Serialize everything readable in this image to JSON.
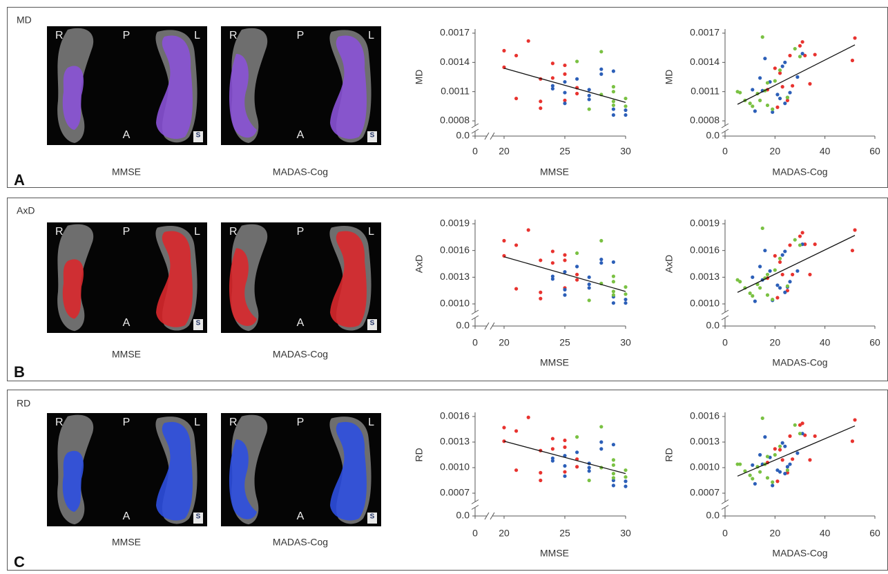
{
  "panels": [
    {
      "label": "A",
      "measure": "MD",
      "overlay_color": "#8a52d6",
      "images": [
        {
          "caption": "MMSE",
          "markers": [
            "R",
            "P",
            "L",
            "A",
            "S"
          ]
        },
        {
          "caption": "MADAS-Cog",
          "markers": [
            "R",
            "P",
            "L",
            "A",
            "S"
          ]
        }
      ]
    },
    {
      "label": "B",
      "measure": "AxD",
      "overlay_color": "#d9282c",
      "images": [
        {
          "caption": "MMSE",
          "markers": [
            "R",
            "P",
            "L",
            "A",
            "S"
          ]
        },
        {
          "caption": "MADAS-Cog",
          "markers": [
            "R",
            "P",
            "L",
            "A",
            "S"
          ]
        }
      ]
    },
    {
      "label": "C",
      "measure": "RD",
      "overlay_color": "#2d4fe0",
      "images": [
        {
          "caption": "MMSE",
          "markers": [
            "R",
            "P",
            "L",
            "A",
            "S"
          ]
        },
        {
          "caption": "MADAS-Cog",
          "markers": [
            "R",
            "P",
            "L",
            "A",
            "S"
          ]
        }
      ]
    }
  ],
  "chart_data": [
    {
      "type": "scatter",
      "xlabel": "MMSE",
      "ylabel": "MD",
      "xlim": [
        20,
        30
      ],
      "xticks": [
        20,
        25,
        30
      ],
      "x_break_tick": 0,
      "ylim": [
        0.0008,
        0.0017
      ],
      "yticks": [
        0.0008,
        0.0011,
        0.0014,
        0.0017
      ],
      "y_break_tick": {
        "value": 0,
        "label": "0.0"
      },
      "series": [
        {
          "color": "#e8332f",
          "x": [
            20,
            20,
            21,
            21,
            22,
            23,
            23,
            23,
            24,
            24,
            25,
            25,
            25,
            26,
            26
          ],
          "values": [
            0.00152,
            0.00135,
            0.00147,
            0.00103,
            0.00162,
            0.00123,
            0.001,
            0.00093,
            0.00139,
            0.00124,
            0.00137,
            0.00128,
            0.00101,
            0.00114,
            0.00108
          ]
        },
        {
          "color": "#2c5fb8",
          "x": [
            24,
            24,
            25,
            25,
            25,
            26,
            27,
            27,
            27,
            28,
            28,
            29,
            29,
            29,
            30,
            30
          ],
          "values": [
            0.00116,
            0.00113,
            0.0012,
            0.00109,
            0.00098,
            0.00123,
            0.00112,
            0.00106,
            0.00102,
            0.00133,
            0.00128,
            0.00131,
            0.00092,
            0.00086,
            0.00091,
            0.00086
          ]
        },
        {
          "color": "#7ac143",
          "x": [
            26,
            27,
            28,
            28,
            29,
            29,
            29,
            29,
            30,
            30
          ],
          "values": [
            0.00141,
            0.00092,
            0.00151,
            0.00107,
            0.00115,
            0.0011,
            0.001,
            0.00096,
            0.00103,
            0.00095
          ]
        }
      ],
      "trendline": {
        "x": [
          20,
          30
        ],
        "values": [
          0.00134,
          0.00099
        ]
      }
    },
    {
      "type": "scatter",
      "xlabel": "MADAS-Cog",
      "ylabel": "MD",
      "xlim": [
        0,
        60
      ],
      "xticks": [
        0,
        20,
        40,
        60
      ],
      "ylim": [
        0.0008,
        0.0017
      ],
      "yticks": [
        0.0008,
        0.0011,
        0.0014,
        0.0017
      ],
      "y_break_tick": {
        "value": 0,
        "label": "0.0"
      },
      "series": [
        {
          "color": "#e8332f",
          "x": [
            17,
            20,
            21,
            22,
            23,
            25,
            26,
            27,
            30,
            31,
            32,
            34,
            36,
            51,
            52
          ],
          "values": [
            0.00112,
            0.00134,
            0.00094,
            0.00129,
            0.00115,
            0.00101,
            0.00147,
            0.00116,
            0.00157,
            0.00161,
            0.00147,
            0.00118,
            0.00148,
            0.00142,
            0.00165
          ]
        },
        {
          "color": "#2c5fb8",
          "x": [
            11,
            12,
            14,
            15,
            16,
            18,
            19,
            21,
            22,
            23,
            24,
            24,
            25,
            26,
            29,
            31
          ],
          "values": [
            0.00112,
            0.0009,
            0.00124,
            0.00111,
            0.00144,
            0.0012,
            0.00089,
            0.00107,
            0.00103,
            0.00136,
            0.0014,
            0.00098,
            0.00104,
            0.00109,
            0.00125,
            0.00149
          ]
        },
        {
          "color": "#7ac143",
          "x": [
            5,
            6,
            8,
            10,
            11,
            13,
            14,
            15,
            16,
            17,
            17,
            19,
            20,
            22,
            25,
            28,
            30
          ],
          "values": [
            0.0011,
            0.00109,
            0.00101,
            0.00098,
            0.00095,
            0.00108,
            0.00101,
            0.00166,
            0.00111,
            0.00119,
            0.00096,
            0.00092,
            0.00121,
            0.00132,
            0.00104,
            0.00154,
            0.00146
          ]
        }
      ],
      "trendline": {
        "x": [
          5,
          52
        ],
        "values": [
          0.00097,
          0.00158
        ]
      }
    },
    {
      "type": "scatter",
      "xlabel": "MMSE",
      "ylabel": "AxD",
      "xlim": [
        20,
        30
      ],
      "xticks": [
        20,
        25,
        30
      ],
      "x_break_tick": 0,
      "ylim": [
        0.001,
        0.0019
      ],
      "yticks": [
        {
          "value": 0.001,
          "label": "0.0010"
        },
        0.0013,
        0.0016,
        0.0019
      ],
      "y_break_tick": {
        "value": 0,
        "label": "0.0"
      },
      "series": [
        {
          "color": "#e8332f",
          "x": [
            20,
            20,
            21,
            21,
            22,
            23,
            23,
            23,
            24,
            24,
            25,
            25,
            25,
            26,
            26
          ],
          "values": [
            0.00171,
            0.00154,
            0.00166,
            0.00117,
            0.00183,
            0.00149,
            0.00113,
            0.00106,
            0.00159,
            0.00146,
            0.00155,
            0.00149,
            0.00118,
            0.00133,
            0.00127
          ]
        },
        {
          "color": "#2c5fb8",
          "x": [
            24,
            24,
            25,
            25,
            25,
            26,
            27,
            27,
            27,
            28,
            28,
            29,
            29,
            29,
            30,
            30
          ],
          "values": [
            0.00131,
            0.00128,
            0.00136,
            0.00116,
            0.0011,
            0.00142,
            0.0013,
            0.00122,
            0.00118,
            0.0015,
            0.00146,
            0.00147,
            0.00108,
            0.00101,
            0.00105,
            0.00101
          ]
        },
        {
          "color": "#7ac143",
          "x": [
            26,
            27,
            28,
            28,
            29,
            29,
            29,
            29,
            30,
            30
          ],
          "values": [
            0.00157,
            0.00104,
            0.00171,
            0.00123,
            0.00131,
            0.00125,
            0.00114,
            0.0011,
            0.00119,
            0.00111
          ]
        }
      ],
      "trendline": {
        "x": [
          20,
          30
        ],
        "values": [
          0.00153,
          0.00114
        ]
      }
    },
    {
      "type": "scatter",
      "xlabel": "MADAS-Cog",
      "ylabel": "AxD",
      "xlim": [
        0,
        60
      ],
      "xticks": [
        0,
        20,
        40,
        60
      ],
      "ylim": [
        0.001,
        0.0019
      ],
      "yticks": [
        {
          "value": 0.001,
          "label": "0.0010"
        },
        0.0013,
        0.0016,
        0.0019
      ],
      "y_break_tick": {
        "value": 0,
        "label": "0.0"
      },
      "series": [
        {
          "color": "#e8332f",
          "x": [
            17,
            20,
            21,
            22,
            23,
            25,
            26,
            27,
            30,
            31,
            32,
            34,
            36,
            51,
            52
          ],
          "values": [
            0.00129,
            0.00154,
            0.00107,
            0.00147,
            0.00133,
            0.00115,
            0.00166,
            0.00133,
            0.00176,
            0.0018,
            0.00167,
            0.00133,
            0.00167,
            0.0016,
            0.00183
          ]
        },
        {
          "color": "#2c5fb8",
          "x": [
            11,
            12,
            14,
            15,
            16,
            18,
            19,
            21,
            22,
            23,
            24,
            24,
            25,
            26,
            29,
            31
          ],
          "values": [
            0.0013,
            0.00103,
            0.00142,
            0.00127,
            0.0016,
            0.00137,
            0.00104,
            0.00121,
            0.00118,
            0.00155,
            0.00159,
            0.00113,
            0.00119,
            0.00125,
            0.00137,
            0.00167
          ]
        },
        {
          "color": "#7ac143",
          "x": [
            5,
            6,
            8,
            10,
            11,
            13,
            14,
            15,
            16,
            17,
            17,
            19,
            20,
            22,
            25,
            28,
            30
          ],
          "values": [
            0.00127,
            0.00125,
            0.00118,
            0.00112,
            0.00109,
            0.00122,
            0.00118,
            0.00185,
            0.00129,
            0.00133,
            0.0011,
            0.00105,
            0.00138,
            0.00151,
            0.0012,
            0.00172,
            0.00166
          ]
        }
      ],
      "trendline": {
        "x": [
          5,
          52
        ],
        "values": [
          0.00113,
          0.00177
        ]
      }
    },
    {
      "type": "scatter",
      "xlabel": "MMSE",
      "ylabel": "RD",
      "xlim": [
        20,
        30
      ],
      "xticks": [
        20,
        25,
        30
      ],
      "x_break_tick": 0,
      "ylim": [
        0.0007,
        0.0016
      ],
      "yticks": [
        0.0007,
        {
          "value": 0.001,
          "label": "0.0010"
        },
        0.0013,
        0.0016
      ],
      "y_break_tick": {
        "value": 0,
        "label": "0.0"
      },
      "series": [
        {
          "color": "#e8332f",
          "x": [
            20,
            20,
            21,
            21,
            22,
            23,
            23,
            23,
            24,
            24,
            25,
            25,
            25,
            26,
            26
          ],
          "values": [
            0.00147,
            0.00131,
            0.00143,
            0.00097,
            0.00159,
            0.0012,
            0.00094,
            0.00085,
            0.00134,
            0.00122,
            0.00132,
            0.00124,
            0.00095,
            0.0011,
            0.00101
          ]
        },
        {
          "color": "#2c5fb8",
          "x": [
            24,
            24,
            25,
            25,
            25,
            26,
            27,
            27,
            27,
            28,
            28,
            29,
            29,
            29,
            30,
            30
          ],
          "values": [
            0.00111,
            0.00108,
            0.00114,
            0.00102,
            0.0009,
            0.00118,
            0.00105,
            0.001,
            0.00096,
            0.0013,
            0.00122,
            0.00127,
            0.00085,
            0.00079,
            0.00084,
            0.00078
          ]
        },
        {
          "color": "#7ac143",
          "x": [
            26,
            27,
            28,
            28,
            29,
            29,
            29,
            29,
            30,
            30
          ],
          "values": [
            0.00136,
            0.00085,
            0.00148,
            0.001,
            0.00109,
            0.00103,
            0.00093,
            0.00088,
            0.00097,
            0.00089
          ]
        }
      ],
      "trendline": {
        "x": [
          20,
          30
        ],
        "values": [
          0.00131,
          0.00093
        ]
      }
    },
    {
      "type": "scatter",
      "xlabel": "MADAS-Cog",
      "ylabel": "RD",
      "xlim": [
        0,
        60
      ],
      "xticks": [
        0,
        20,
        40,
        60
      ],
      "ylim": [
        0.0007,
        0.0016
      ],
      "yticks": [
        0.0007,
        {
          "value": 0.001,
          "label": "0.0010"
        },
        0.0013,
        0.0016
      ],
      "y_break_tick": {
        "value": 0,
        "label": "0.0"
      },
      "series": [
        {
          "color": "#e8332f",
          "x": [
            17,
            20,
            21,
            22,
            23,
            25,
            26,
            27,
            30,
            31,
            32,
            34,
            36,
            51,
            52
          ],
          "values": [
            0.00106,
            0.00122,
            0.00084,
            0.00121,
            0.00109,
            0.00094,
            0.00137,
            0.0011,
            0.0015,
            0.00152,
            0.00138,
            0.00109,
            0.00137,
            0.00131,
            0.00156
          ]
        },
        {
          "color": "#2c5fb8",
          "x": [
            11,
            12,
            14,
            15,
            16,
            18,
            19,
            21,
            22,
            23,
            24,
            24,
            25,
            26,
            29,
            31
          ],
          "values": [
            0.00103,
            0.00081,
            0.00115,
            0.00104,
            0.00136,
            0.00112,
            0.00079,
            0.00097,
            0.00095,
            0.00129,
            0.00125,
            0.00093,
            0.00101,
            0.00104,
            0.00117,
            0.0014
          ]
        },
        {
          "color": "#7ac143",
          "x": [
            5,
            6,
            8,
            10,
            11,
            13,
            14,
            15,
            16,
            17,
            17,
            19,
            20,
            22,
            25,
            28,
            30
          ],
          "values": [
            0.00104,
            0.00104,
            0.00096,
            0.00091,
            0.00087,
            0.00101,
            0.00095,
            0.00158,
            0.00104,
            0.00113,
            0.00088,
            0.00083,
            0.00115,
            0.00125,
            0.00097,
            0.0015,
            0.0014
          ]
        }
      ],
      "trendline": {
        "x": [
          5,
          52
        ],
        "values": [
          0.0009,
          0.00149
        ]
      }
    }
  ]
}
